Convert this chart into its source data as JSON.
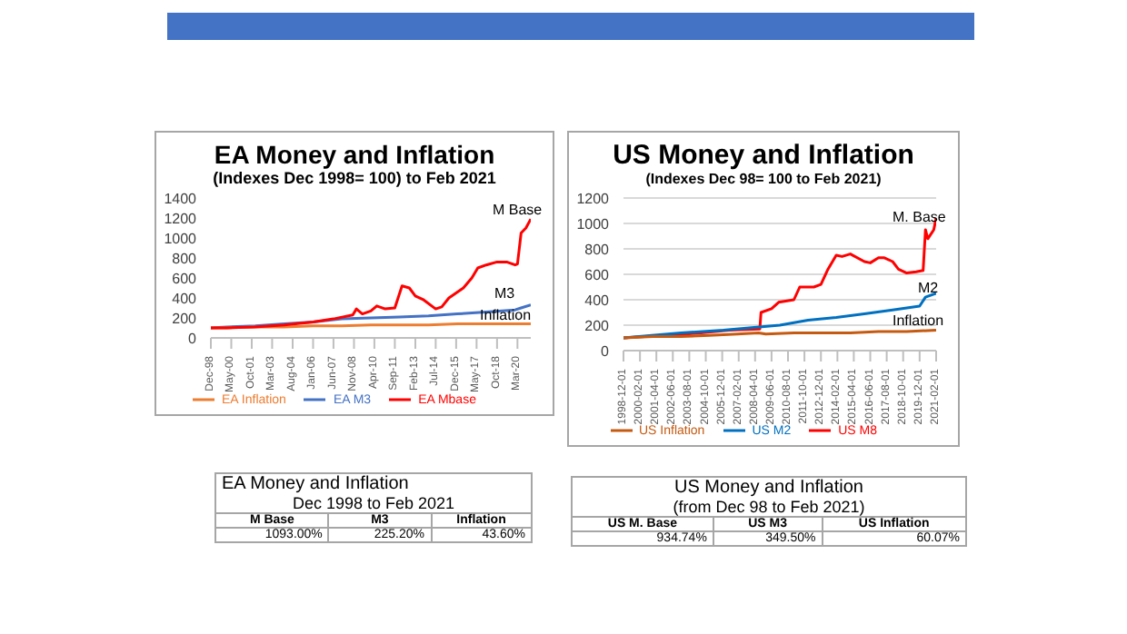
{
  "chart_data": [
    {
      "type": "line",
      "title": "EA Money and Inflation",
      "subtitle": "(Indexes Dec 1998= 100) to Feb 2021",
      "xlim": [
        "1998-12",
        "2021-02"
      ],
      "xticks": [
        {
          "value": "1998-12",
          "label": "Dec-98"
        },
        {
          "value": "2000-05",
          "label": "May-00"
        },
        {
          "value": "2001-10",
          "label": "Oct-01"
        },
        {
          "value": "2003-03",
          "label": "Mar-03"
        },
        {
          "value": "2004-08",
          "label": "Aug-04"
        },
        {
          "value": "2006-01",
          "label": "Jan-06"
        },
        {
          "value": "2007-06",
          "label": "Jun-07"
        },
        {
          "value": "2008-11",
          "label": "Nov-08"
        },
        {
          "value": "2010-04",
          "label": "Apr-10"
        },
        {
          "value": "2011-09",
          "label": "Sep-11"
        },
        {
          "value": "2013-02",
          "label": "Feb-13"
        },
        {
          "value": "2014-07",
          "label": "Jul-14"
        },
        {
          "value": "2015-12",
          "label": "Dec-15"
        },
        {
          "value": "2017-05",
          "label": "May-17"
        },
        {
          "value": "2018-10",
          "label": "Oct-18"
        },
        {
          "value": "2020-03",
          "label": "Mar-20"
        }
      ],
      "ylim": [
        0,
        1400
      ],
      "yticks": [
        0,
        200,
        400,
        600,
        800,
        1000,
        1200,
        1400
      ],
      "grid": false,
      "legend": "bottom",
      "marker": "none",
      "line_style": "solid",
      "x": [
        "1998-12",
        "2000-01",
        "2002-01",
        "2004-01",
        "2006-01",
        "2008-01",
        "2010-01",
        "2012-01",
        "2014-01",
        "2016-01",
        "2018-01",
        "2020-01",
        "2020-06",
        "2021-02"
      ],
      "series": [
        {
          "name": "EA M3",
          "color": "#4472c4",
          "values": [
            100,
            110,
            120,
            140,
            160,
            190,
            200,
            210,
            220,
            240,
            260,
            280,
            300,
            330
          ]
        },
        {
          "name": "EA Inflation",
          "color": "#ed7d31",
          "values": [
            100,
            100,
            110,
            110,
            120,
            120,
            130,
            130,
            130,
            140,
            140,
            140,
            140,
            140
          ]
        },
        {
          "name": "EA Mbase",
          "color": "#ff0000",
          "x": [
            "1998-12",
            "2000-01",
            "2001-12",
            "2004-01",
            "2006-01",
            "2007-06",
            "2008-10",
            "2009-01",
            "2009-06",
            "2010-01",
            "2010-06",
            "2011-01",
            "2011-09",
            "2012-03",
            "2012-09",
            "2013-02",
            "2013-09",
            "2014-07",
            "2014-12",
            "2015-06",
            "2016-06",
            "2017-01",
            "2017-06",
            "2018-01",
            "2018-10",
            "2019-06",
            "2020-01",
            "2020-03",
            "2020-06",
            "2020-10",
            "2021-02"
          ],
          "values": [
            100,
            100,
            110,
            130,
            160,
            190,
            230,
            290,
            240,
            270,
            320,
            290,
            300,
            520,
            500,
            420,
            380,
            290,
            310,
            400,
            500,
            600,
            700,
            730,
            760,
            760,
            730,
            740,
            1050,
            1100,
            1190
          ]
        }
      ],
      "annotations": [
        "M Base",
        "M3",
        "Inflation"
      ]
    },
    {
      "type": "line",
      "title": "US Money and Inflation",
      "subtitle": "(Indexes Dec 98= 100 to Feb 2021)",
      "xlim": [
        "1998-12-01",
        "2021-02-01"
      ],
      "xticks": [
        "1998-12-01",
        "2000-02-01",
        "2001-04-01",
        "2002-06-01",
        "2003-08-01",
        "2004-10-01",
        "2005-12-01",
        "2007-02-01",
        "2008-04-01",
        "2009-06-01",
        "2010-08-01",
        "2011-10-01",
        "2012-12-01",
        "2014-02-01",
        "2015-04-01",
        "2016-06-01",
        "2017-08-01",
        "2018-10-01",
        "2019-12-01",
        "2021-02-01"
      ],
      "ylim": [
        0,
        1200
      ],
      "yticks": [
        0,
        200,
        400,
        600,
        800,
        1000,
        1200
      ],
      "grid": "y",
      "legend": "bottom",
      "marker": "none",
      "line_style": "solid",
      "series": [
        {
          "name": "US M8",
          "color": "#ff0000",
          "x": [
            "1998-12-01",
            "2000-06-01",
            "2002-06-01",
            "2004-06-01",
            "2006-06-01",
            "2008-08-01",
            "2008-09-01",
            "2009-06-01",
            "2009-12-01",
            "2010-06-01",
            "2011-01-01",
            "2011-06-01",
            "2012-06-01",
            "2012-12-01",
            "2013-06-01",
            "2014-01-01",
            "2014-06-01",
            "2015-01-01",
            "2016-01-01",
            "2016-06-01",
            "2017-01-01",
            "2017-06-01",
            "2018-01-01",
            "2018-06-01",
            "2019-01-01",
            "2019-09-01",
            "2020-03-01",
            "2020-05-01",
            "2020-07-01",
            "2020-12-01",
            "2021-02-01"
          ],
          "values": [
            100,
            110,
            120,
            140,
            160,
            170,
            300,
            330,
            380,
            390,
            400,
            500,
            500,
            520,
            640,
            750,
            740,
            760,
            700,
            690,
            730,
            730,
            700,
            640,
            610,
            620,
            630,
            950,
            880,
            950,
            1040
          ]
        },
        {
          "name": "US M2",
          "color": "#0070c0",
          "x": [
            "1998-12-01",
            "2000-12-01",
            "2003-01-01",
            "2006-01-01",
            "2008-01-01",
            "2010-01-01",
            "2012-01-01",
            "2014-01-01",
            "2016-01-01",
            "2018-01-01",
            "2019-12-01",
            "2020-05-01",
            "2021-02-01"
          ],
          "values": [
            100,
            120,
            140,
            160,
            180,
            200,
            240,
            260,
            290,
            320,
            350,
            420,
            450
          ]
        },
        {
          "name": "US Inflation",
          "color": "#c55a11",
          "x": [
            "1998-12-01",
            "2001-01-01",
            "2003-01-01",
            "2005-01-01",
            "2007-01-01",
            "2008-07-01",
            "2009-01-01",
            "2011-01-01",
            "2013-01-01",
            "2015-01-01",
            "2017-01-01",
            "2019-01-01",
            "2021-02-01"
          ],
          "values": [
            100,
            110,
            110,
            120,
            130,
            140,
            130,
            140,
            140,
            140,
            150,
            150,
            160
          ]
        }
      ],
      "annotations": [
        "M. Base",
        "M2",
        "Inflation"
      ]
    },
    {
      "type": "other",
      "title": "EA Money and Inflation",
      "subtitle": "Dec 1998 to Feb 2021",
      "categories": [
        "M Base",
        "M3",
        "Inflation"
      ],
      "value_labels": [
        "1093.00%",
        "225.20%",
        "43.60%"
      ]
    },
    {
      "type": "other",
      "title": "US Money and Inflation",
      "subtitle": "(from Dec 98 to Feb 2021)",
      "categories": [
        "US M. Base",
        "US M3",
        "US Inflation"
      ],
      "value_labels": [
        "934.74%",
        "349.50%",
        "60.07%"
      ]
    }
  ]
}
